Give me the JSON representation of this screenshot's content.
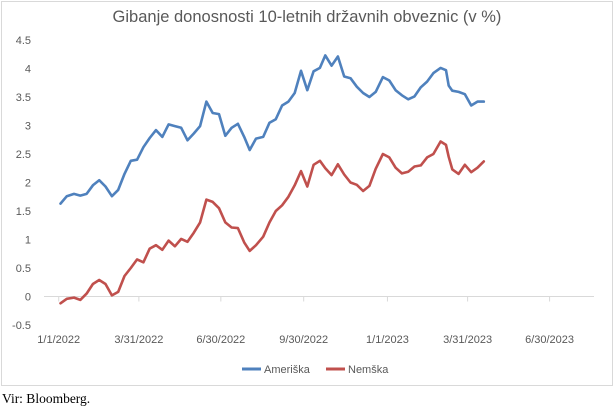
{
  "chart_data": {
    "type": "line",
    "title": "Gibanje donosnosti 10-letnih državnih obveznic (v %)",
    "xlabel": "",
    "ylabel": "",
    "ylim": [
      -0.5,
      4.5
    ],
    "yticks": [
      "-0.5",
      "0",
      "0.5",
      "1",
      "1.5",
      "2",
      "2.5",
      "3",
      "3.5",
      "4",
      "4.5"
    ],
    "xlim": [
      "2021-12-09",
      "2023-08-25"
    ],
    "xticks": [
      {
        "date": "2022-01-01",
        "label": "1/1/2022"
      },
      {
        "date": "2022-03-31",
        "label": "3/31/2022"
      },
      {
        "date": "2022-06-30",
        "label": "6/30/2022"
      },
      {
        "date": "2022-09-30",
        "label": "9/30/2022"
      },
      {
        "date": "2023-01-01",
        "label": "1/1/2023"
      },
      {
        "date": "2023-03-31",
        "label": "3/31/2023"
      },
      {
        "date": "2023-06-30",
        "label": "6/30/2023"
      }
    ],
    "grid": false,
    "legend": "bottom",
    "series": [
      {
        "name": "Ameriška",
        "color": "#4f81bd",
        "points": [
          [
            "2022-01-03",
            1.63
          ],
          [
            "2022-01-10",
            1.76
          ],
          [
            "2022-01-18",
            1.8
          ],
          [
            "2022-01-25",
            1.77
          ],
          [
            "2022-02-01",
            1.8
          ],
          [
            "2022-02-08",
            1.95
          ],
          [
            "2022-02-15",
            2.04
          ],
          [
            "2022-02-22",
            1.93
          ],
          [
            "2022-03-01",
            1.76
          ],
          [
            "2022-03-08",
            1.87
          ],
          [
            "2022-03-15",
            2.15
          ],
          [
            "2022-03-22",
            2.38
          ],
          [
            "2022-03-29",
            2.4
          ],
          [
            "2022-04-05",
            2.62
          ],
          [
            "2022-04-12",
            2.78
          ],
          [
            "2022-04-19",
            2.92
          ],
          [
            "2022-04-26",
            2.8
          ],
          [
            "2022-05-03",
            3.02
          ],
          [
            "2022-05-10",
            2.99
          ],
          [
            "2022-05-17",
            2.96
          ],
          [
            "2022-05-24",
            2.74
          ],
          [
            "2022-05-31",
            2.86
          ],
          [
            "2022-06-07",
            2.99
          ],
          [
            "2022-06-14",
            3.42
          ],
          [
            "2022-06-21",
            3.22
          ],
          [
            "2022-06-28",
            3.2
          ],
          [
            "2022-07-05",
            2.82
          ],
          [
            "2022-07-12",
            2.96
          ],
          [
            "2022-07-19",
            3.03
          ],
          [
            "2022-07-26",
            2.8
          ],
          [
            "2022-08-01",
            2.57
          ],
          [
            "2022-08-08",
            2.77
          ],
          [
            "2022-08-16",
            2.8
          ],
          [
            "2022-08-23",
            3.05
          ],
          [
            "2022-08-30",
            3.11
          ],
          [
            "2022-09-06",
            3.35
          ],
          [
            "2022-09-13",
            3.42
          ],
          [
            "2022-09-20",
            3.57
          ],
          [
            "2022-09-27",
            3.96
          ],
          [
            "2022-10-04",
            3.62
          ],
          [
            "2022-10-11",
            3.95
          ],
          [
            "2022-10-18",
            4.01
          ],
          [
            "2022-10-24",
            4.23
          ],
          [
            "2022-10-31",
            4.05
          ],
          [
            "2022-11-07",
            4.21
          ],
          [
            "2022-11-14",
            3.86
          ],
          [
            "2022-11-21",
            3.83
          ],
          [
            "2022-11-28",
            3.68
          ],
          [
            "2022-12-05",
            3.57
          ],
          [
            "2022-12-12",
            3.5
          ],
          [
            "2022-12-19",
            3.59
          ],
          [
            "2022-12-27",
            3.85
          ],
          [
            "2023-01-03",
            3.79
          ],
          [
            "2023-01-10",
            3.62
          ],
          [
            "2023-01-17",
            3.53
          ],
          [
            "2023-01-24",
            3.46
          ],
          [
            "2023-01-31",
            3.51
          ],
          [
            "2023-02-07",
            3.67
          ],
          [
            "2023-02-14",
            3.77
          ],
          [
            "2023-02-21",
            3.92
          ],
          [
            "2023-03-01",
            4.01
          ],
          [
            "2023-03-07",
            3.97
          ],
          [
            "2023-03-10",
            3.7
          ],
          [
            "2023-03-14",
            3.61
          ],
          [
            "2023-03-21",
            3.59
          ],
          [
            "2023-03-28",
            3.55
          ],
          [
            "2023-04-04",
            3.35
          ],
          [
            "2023-04-11",
            3.42
          ],
          [
            "2023-04-18",
            3.42
          ]
        ]
      },
      {
        "name": "Nemška",
        "color": "#c0504d",
        "points": [
          [
            "2022-01-03",
            -0.12
          ],
          [
            "2022-01-10",
            -0.04
          ],
          [
            "2022-01-18",
            -0.02
          ],
          [
            "2022-01-25",
            -0.06
          ],
          [
            "2022-02-01",
            0.05
          ],
          [
            "2022-02-08",
            0.22
          ],
          [
            "2022-02-15",
            0.29
          ],
          [
            "2022-02-22",
            0.22
          ],
          [
            "2022-03-01",
            0.02
          ],
          [
            "2022-03-08",
            0.08
          ],
          [
            "2022-03-15",
            0.36
          ],
          [
            "2022-03-22",
            0.5
          ],
          [
            "2022-03-29",
            0.65
          ],
          [
            "2022-04-05",
            0.6
          ],
          [
            "2022-04-12",
            0.84
          ],
          [
            "2022-04-19",
            0.9
          ],
          [
            "2022-04-26",
            0.82
          ],
          [
            "2022-05-03",
            0.98
          ],
          [
            "2022-05-10",
            0.88
          ],
          [
            "2022-05-17",
            1.01
          ],
          [
            "2022-05-24",
            0.96
          ],
          [
            "2022-05-31",
            1.12
          ],
          [
            "2022-06-07",
            1.3
          ],
          [
            "2022-06-14",
            1.7
          ],
          [
            "2022-06-21",
            1.66
          ],
          [
            "2022-06-28",
            1.55
          ],
          [
            "2022-07-05",
            1.3
          ],
          [
            "2022-07-12",
            1.21
          ],
          [
            "2022-07-19",
            1.2
          ],
          [
            "2022-07-26",
            0.95
          ],
          [
            "2022-08-01",
            0.8
          ],
          [
            "2022-08-08",
            0.9
          ],
          [
            "2022-08-16",
            1.05
          ],
          [
            "2022-08-23",
            1.3
          ],
          [
            "2022-08-30",
            1.5
          ],
          [
            "2022-09-06",
            1.6
          ],
          [
            "2022-09-13",
            1.75
          ],
          [
            "2022-09-20",
            1.95
          ],
          [
            "2022-09-27",
            2.2
          ],
          [
            "2022-10-04",
            1.93
          ],
          [
            "2022-10-11",
            2.31
          ],
          [
            "2022-10-18",
            2.38
          ],
          [
            "2022-10-24",
            2.25
          ],
          [
            "2022-10-31",
            2.13
          ],
          [
            "2022-11-07",
            2.32
          ],
          [
            "2022-11-14",
            2.14
          ],
          [
            "2022-11-21",
            2.0
          ],
          [
            "2022-11-28",
            1.96
          ],
          [
            "2022-12-05",
            1.85
          ],
          [
            "2022-12-12",
            1.94
          ],
          [
            "2022-12-19",
            2.24
          ],
          [
            "2022-12-27",
            2.5
          ],
          [
            "2023-01-03",
            2.44
          ],
          [
            "2023-01-10",
            2.26
          ],
          [
            "2023-01-17",
            2.16
          ],
          [
            "2023-01-24",
            2.19
          ],
          [
            "2023-01-31",
            2.28
          ],
          [
            "2023-02-07",
            2.3
          ],
          [
            "2023-02-14",
            2.44
          ],
          [
            "2023-02-21",
            2.5
          ],
          [
            "2023-03-01",
            2.72
          ],
          [
            "2023-03-07",
            2.66
          ],
          [
            "2023-03-10",
            2.45
          ],
          [
            "2023-03-14",
            2.23
          ],
          [
            "2023-03-21",
            2.15
          ],
          [
            "2023-03-28",
            2.31
          ],
          [
            "2023-04-04",
            2.18
          ],
          [
            "2023-04-11",
            2.26
          ],
          [
            "2023-04-18",
            2.37
          ]
        ]
      }
    ]
  },
  "source": "Vir: Bloomberg."
}
